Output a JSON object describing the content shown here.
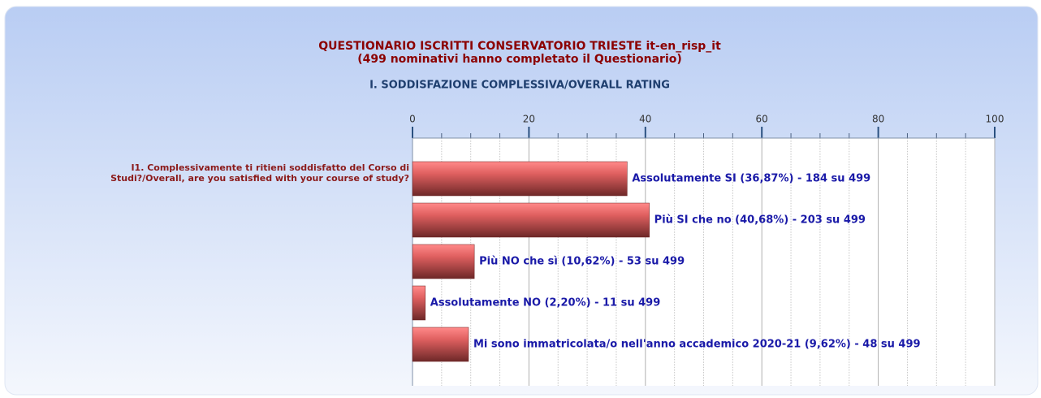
{
  "chart_data": {
    "type": "bar",
    "orientation": "horizontal",
    "title": "QUESTIONARIO ISCRITTI CONSERVATORIO TRIESTE it-en_risp_it",
    "subtitle": "(499 nominativi hanno completato il Questionario)",
    "section_title": "I. SODDISFAZIONE COMPLESSIVA/OVERALL RATING",
    "group_label": "I1. Complessivamente ti ritieni soddisfatto del Corso di Studi?/Overall, are you satisfied with your course of study?",
    "values": [
      36.87,
      40.68,
      10.62,
      2.2,
      9.62
    ],
    "value_labels": [
      "Assolutamente SI (36,87%) - 184 su 499",
      "Più SI che no (40,68%) - 203 su 499",
      "Più NO che sì (10,62%) - 53 su 499",
      "Assolutamente NO (2,20%) - 11 su 499",
      "Mi sono immatricolata/o nell'anno accademico 2020-21 (9,62%) - 48 su 499"
    ],
    "color": "#d05050",
    "xlim": [
      0,
      100
    ],
    "xticks": [
      0,
      20,
      40,
      60,
      80,
      100
    ],
    "minor_xticks": [
      5,
      10,
      15,
      25,
      30,
      35,
      45,
      50,
      55,
      65,
      70,
      75,
      85,
      90,
      95
    ],
    "grid": true
  }
}
